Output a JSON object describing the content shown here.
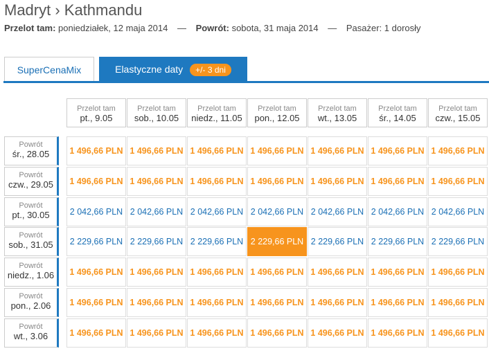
{
  "header": {
    "title": "Madryt › Kathmandu",
    "summary": {
      "outbound_label": "Przelot tam:",
      "outbound": "poniedziałek, 12 maja 2014",
      "separator": "—",
      "return_label": "Powrót:",
      "return": "sobota, 31 maja 2014",
      "passengers": "Pasażer: 1 dorosły"
    }
  },
  "tabs": [
    {
      "label": "SuperCenaMix"
    },
    {
      "label": "Elastyczne daty",
      "badge": "+/- 3 dni"
    }
  ],
  "table": {
    "columns": [
      {
        "label": "Przelot tam",
        "date": "pt., 9.05"
      },
      {
        "label": "Przelot tam",
        "date": "sob., 10.05"
      },
      {
        "label": "Przelot tam",
        "date": "niedz., 11.05"
      },
      {
        "label": "Przelot tam",
        "date": "pon., 12.05"
      },
      {
        "label": "Przelot tam",
        "date": "wt., 13.05"
      },
      {
        "label": "Przelot tam",
        "date": "śr., 14.05"
      },
      {
        "label": "Przelot tam",
        "date": "czw., 15.05"
      }
    ],
    "rows": [
      {
        "label": "Powrót",
        "date": "śr., 28.05",
        "prices": [
          "1 496,66 PLN",
          "1 496,66 PLN",
          "1 496,66 PLN",
          "1 496,66 PLN",
          "1 496,66 PLN",
          "1 496,66 PLN",
          "1 496,66 PLN"
        ]
      },
      {
        "label": "Powrót",
        "date": "czw., 29.05",
        "prices": [
          "1 496,66 PLN",
          "1 496,66 PLN",
          "1 496,66 PLN",
          "1 496,66 PLN",
          "1 496,66 PLN",
          "1 496,66 PLN",
          "1 496,66 PLN"
        ]
      },
      {
        "label": "Powrót",
        "date": "pt., 30.05",
        "prices": [
          "2 042,66 PLN",
          "2 042,66 PLN",
          "2 042,66 PLN",
          "2 042,66 PLN",
          "2 042,66 PLN",
          "2 042,66 PLN",
          "2 042,66 PLN"
        ]
      },
      {
        "label": "Powrót",
        "date": "sob., 31.05",
        "prices": [
          "2 229,66 PLN",
          "2 229,66 PLN",
          "2 229,66 PLN",
          "2 229,66 PLN",
          "2 229,66 PLN",
          "2 229,66 PLN",
          "2 229,66 PLN"
        ]
      },
      {
        "label": "Powrót",
        "date": "niedz., 1.06",
        "prices": [
          "1 496,66 PLN",
          "1 496,66 PLN",
          "1 496,66 PLN",
          "1 496,66 PLN",
          "1 496,66 PLN",
          "1 496,66 PLN",
          "1 496,66 PLN"
        ]
      },
      {
        "label": "Powrót",
        "date": "pon., 2.06",
        "prices": [
          "1 496,66 PLN",
          "1 496,66 PLN",
          "1 496,66 PLN",
          "1 496,66 PLN",
          "1 496,66 PLN",
          "1 496,66 PLN",
          "1 496,66 PLN"
        ]
      },
      {
        "label": "Powrót",
        "date": "wt., 3.06",
        "prices": [
          "1 496,66 PLN",
          "1 496,66 PLN",
          "1 496,66 PLN",
          "1 496,66 PLN",
          "1 496,66 PLN",
          "1 496,66 PLN",
          "1 496,66 PLN"
        ]
      }
    ]
  }
}
